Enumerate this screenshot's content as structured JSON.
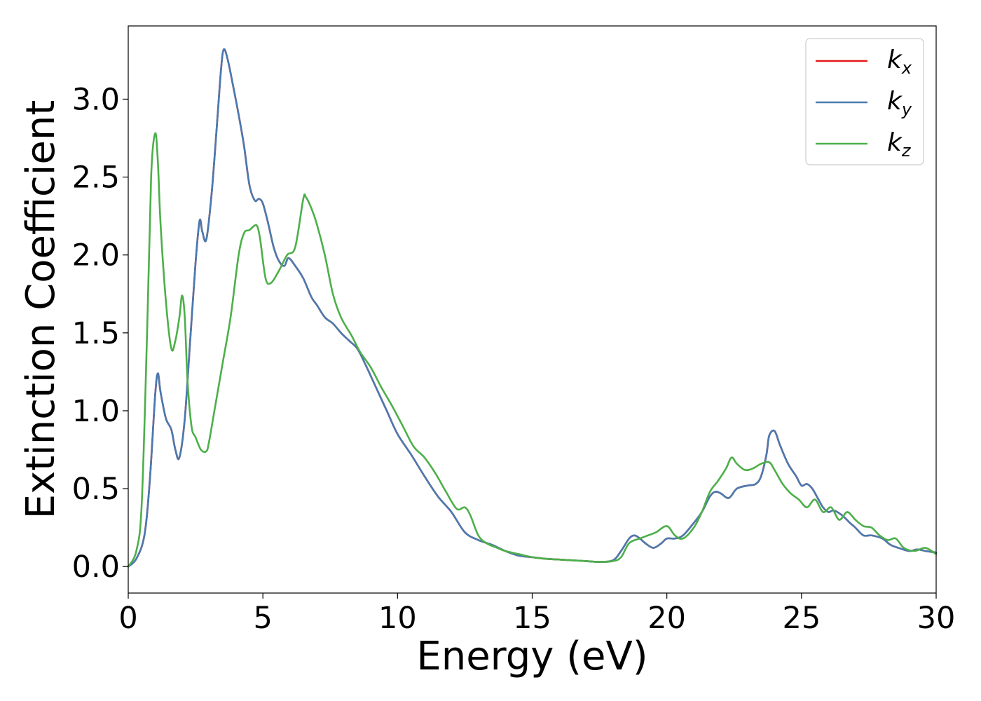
{
  "chart_data": {
    "type": "line",
    "xlabel": "Energy (eV)",
    "ylabel": "Extinction Coefficient",
    "xlim": [
      0,
      30
    ],
    "ylim": [
      -0.17,
      3.47
    ],
    "x_ticks": [
      "0",
      "5",
      "10",
      "15",
      "20",
      "25",
      "30"
    ],
    "y_ticks": [
      "0.0",
      "0.5",
      "1.0",
      "1.5",
      "2.0",
      "2.5",
      "3.0"
    ],
    "grid": false,
    "legend_position": "top-right",
    "series": [
      {
        "name": "k",
        "subscript": "x",
        "color": "#e41a1c",
        "x": [
          0,
          0.3,
          0.6,
          0.8,
          1.0,
          1.1,
          1.2,
          1.4,
          1.6,
          1.75,
          1.9,
          2.1,
          2.3,
          2.5,
          2.65,
          2.75,
          2.9,
          3.1,
          3.3,
          3.45,
          3.55,
          3.7,
          3.9,
          4.1,
          4.3,
          4.5,
          4.7,
          4.85,
          5.0,
          5.2,
          5.4,
          5.6,
          5.8,
          5.95,
          6.2,
          6.5,
          6.8,
          7.0,
          7.3,
          7.6,
          7.9,
          8.2,
          8.5,
          8.8,
          9.2,
          9.6,
          10.0,
          10.5,
          11.0,
          11.5,
          12.0,
          12.5,
          13.0,
          13.5,
          14.0,
          14.5,
          15.0,
          15.5,
          16.0,
          16.5,
          17.0,
          17.5,
          18.0,
          18.3,
          18.6,
          18.8,
          19.0,
          19.2,
          19.5,
          19.8,
          20.0,
          20.3,
          20.6,
          21.0,
          21.3,
          21.6,
          21.8,
          22.0,
          22.3,
          22.6,
          23.0,
          23.3,
          23.5,
          23.7,
          23.8,
          24.0,
          24.2,
          24.5,
          24.8,
          25.0,
          25.2,
          25.4,
          25.6,
          25.8,
          26.0,
          26.2,
          26.5,
          26.8,
          27.0,
          27.3,
          27.6,
          28.0,
          28.3,
          28.6,
          29.0,
          29.3,
          29.6,
          30.0
        ],
        "values": [
          0.0,
          0.05,
          0.2,
          0.55,
          1.1,
          1.24,
          1.12,
          0.95,
          0.88,
          0.75,
          0.7,
          0.95,
          1.45,
          1.95,
          2.22,
          2.15,
          2.1,
          2.4,
          2.85,
          3.2,
          3.32,
          3.25,
          3.08,
          2.9,
          2.7,
          2.45,
          2.35,
          2.36,
          2.33,
          2.2,
          2.05,
          1.96,
          1.93,
          1.98,
          1.93,
          1.85,
          1.73,
          1.68,
          1.6,
          1.56,
          1.5,
          1.45,
          1.4,
          1.3,
          1.15,
          1.0,
          0.85,
          0.72,
          0.58,
          0.45,
          0.35,
          0.22,
          0.17,
          0.14,
          0.1,
          0.07,
          0.06,
          0.05,
          0.045,
          0.04,
          0.035,
          0.03,
          0.04,
          0.1,
          0.18,
          0.2,
          0.18,
          0.15,
          0.12,
          0.15,
          0.18,
          0.18,
          0.2,
          0.28,
          0.35,
          0.45,
          0.48,
          0.47,
          0.44,
          0.5,
          0.52,
          0.53,
          0.58,
          0.72,
          0.84,
          0.87,
          0.78,
          0.66,
          0.58,
          0.52,
          0.53,
          0.5,
          0.44,
          0.38,
          0.35,
          0.36,
          0.33,
          0.28,
          0.25,
          0.2,
          0.2,
          0.18,
          0.14,
          0.12,
          0.1,
          0.11,
          0.1,
          0.09
        ]
      },
      {
        "name": "k",
        "subscript": "y",
        "color": "#4a7ab0",
        "x": [
          0,
          0.3,
          0.6,
          0.8,
          1.0,
          1.1,
          1.2,
          1.4,
          1.6,
          1.75,
          1.9,
          2.1,
          2.3,
          2.5,
          2.65,
          2.75,
          2.9,
          3.1,
          3.3,
          3.45,
          3.55,
          3.7,
          3.9,
          4.1,
          4.3,
          4.5,
          4.7,
          4.85,
          5.0,
          5.2,
          5.4,
          5.6,
          5.8,
          5.95,
          6.2,
          6.5,
          6.8,
          7.0,
          7.3,
          7.6,
          7.9,
          8.2,
          8.5,
          8.8,
          9.2,
          9.6,
          10.0,
          10.5,
          11.0,
          11.5,
          12.0,
          12.5,
          13.0,
          13.5,
          14.0,
          14.5,
          15.0,
          15.5,
          16.0,
          16.5,
          17.0,
          17.5,
          18.0,
          18.3,
          18.6,
          18.8,
          19.0,
          19.2,
          19.5,
          19.8,
          20.0,
          20.3,
          20.6,
          21.0,
          21.3,
          21.6,
          21.8,
          22.0,
          22.3,
          22.6,
          23.0,
          23.3,
          23.5,
          23.7,
          23.8,
          24.0,
          24.2,
          24.5,
          24.8,
          25.0,
          25.2,
          25.4,
          25.6,
          25.8,
          26.0,
          26.2,
          26.5,
          26.8,
          27.0,
          27.3,
          27.6,
          28.0,
          28.3,
          28.6,
          29.0,
          29.3,
          29.6,
          30.0
        ],
        "values": [
          0.0,
          0.05,
          0.2,
          0.55,
          1.1,
          1.24,
          1.12,
          0.95,
          0.88,
          0.75,
          0.7,
          0.95,
          1.45,
          1.95,
          2.22,
          2.15,
          2.1,
          2.4,
          2.85,
          3.2,
          3.32,
          3.25,
          3.08,
          2.9,
          2.7,
          2.45,
          2.35,
          2.36,
          2.33,
          2.2,
          2.05,
          1.96,
          1.93,
          1.98,
          1.93,
          1.85,
          1.73,
          1.68,
          1.6,
          1.56,
          1.5,
          1.45,
          1.4,
          1.3,
          1.15,
          1.0,
          0.85,
          0.72,
          0.58,
          0.45,
          0.35,
          0.22,
          0.17,
          0.14,
          0.1,
          0.07,
          0.06,
          0.05,
          0.045,
          0.04,
          0.035,
          0.03,
          0.04,
          0.1,
          0.18,
          0.2,
          0.18,
          0.15,
          0.12,
          0.15,
          0.18,
          0.18,
          0.2,
          0.28,
          0.35,
          0.45,
          0.48,
          0.47,
          0.44,
          0.5,
          0.52,
          0.53,
          0.58,
          0.72,
          0.84,
          0.87,
          0.78,
          0.66,
          0.58,
          0.52,
          0.53,
          0.5,
          0.44,
          0.38,
          0.35,
          0.36,
          0.33,
          0.28,
          0.25,
          0.2,
          0.2,
          0.18,
          0.14,
          0.12,
          0.1,
          0.11,
          0.1,
          0.09
        ]
      },
      {
        "name": "k",
        "subscript": "z",
        "color": "#4daf4a",
        "x": [
          0,
          0.3,
          0.5,
          0.7,
          0.85,
          1.0,
          1.1,
          1.2,
          1.4,
          1.6,
          1.75,
          1.9,
          2.0,
          2.1,
          2.2,
          2.35,
          2.5,
          2.7,
          2.9,
          3.0,
          3.2,
          3.5,
          3.8,
          4.1,
          4.3,
          4.5,
          4.7,
          4.8,
          4.9,
          5.1,
          5.3,
          5.6,
          5.9,
          6.2,
          6.5,
          6.6,
          6.8,
          7.0,
          7.3,
          7.6,
          7.9,
          8.3,
          8.6,
          9.0,
          9.4,
          9.8,
          10.2,
          10.6,
          11.0,
          11.4,
          11.8,
          12.2,
          12.5,
          12.7,
          13.0,
          13.3,
          13.7,
          14.0,
          14.5,
          15.0,
          15.5,
          16.0,
          16.5,
          17.0,
          17.5,
          18.0,
          18.3,
          18.6,
          19.0,
          19.3,
          19.6,
          20.0,
          20.3,
          20.6,
          21.0,
          21.3,
          21.6,
          21.9,
          22.2,
          22.4,
          22.6,
          22.9,
          23.2,
          23.5,
          23.8,
          24.0,
          24.3,
          24.6,
          24.9,
          25.2,
          25.5,
          25.8,
          26.1,
          26.4,
          26.7,
          27.0,
          27.3,
          27.6,
          27.9,
          28.2,
          28.5,
          28.8,
          29.2,
          29.6,
          30.0
        ],
        "values": [
          0.0,
          0.1,
          0.4,
          1.5,
          2.5,
          2.78,
          2.6,
          2.2,
          1.7,
          1.4,
          1.45,
          1.6,
          1.74,
          1.6,
          1.2,
          0.9,
          0.83,
          0.75,
          0.74,
          0.8,
          1.0,
          1.3,
          1.6,
          2.0,
          2.14,
          2.16,
          2.19,
          2.18,
          2.1,
          1.85,
          1.82,
          1.9,
          2.0,
          2.05,
          2.36,
          2.37,
          2.3,
          2.2,
          2.0,
          1.75,
          1.6,
          1.48,
          1.38,
          1.28,
          1.15,
          1.03,
          0.9,
          0.77,
          0.7,
          0.6,
          0.48,
          0.37,
          0.38,
          0.33,
          0.2,
          0.15,
          0.12,
          0.1,
          0.08,
          0.06,
          0.05,
          0.045,
          0.04,
          0.035,
          0.03,
          0.035,
          0.06,
          0.15,
          0.18,
          0.2,
          0.22,
          0.26,
          0.2,
          0.18,
          0.25,
          0.35,
          0.48,
          0.55,
          0.63,
          0.7,
          0.66,
          0.62,
          0.63,
          0.66,
          0.67,
          0.62,
          0.53,
          0.47,
          0.43,
          0.38,
          0.43,
          0.35,
          0.38,
          0.3,
          0.35,
          0.3,
          0.26,
          0.25,
          0.2,
          0.17,
          0.18,
          0.12,
          0.1,
          0.12,
          0.08
        ]
      }
    ]
  }
}
